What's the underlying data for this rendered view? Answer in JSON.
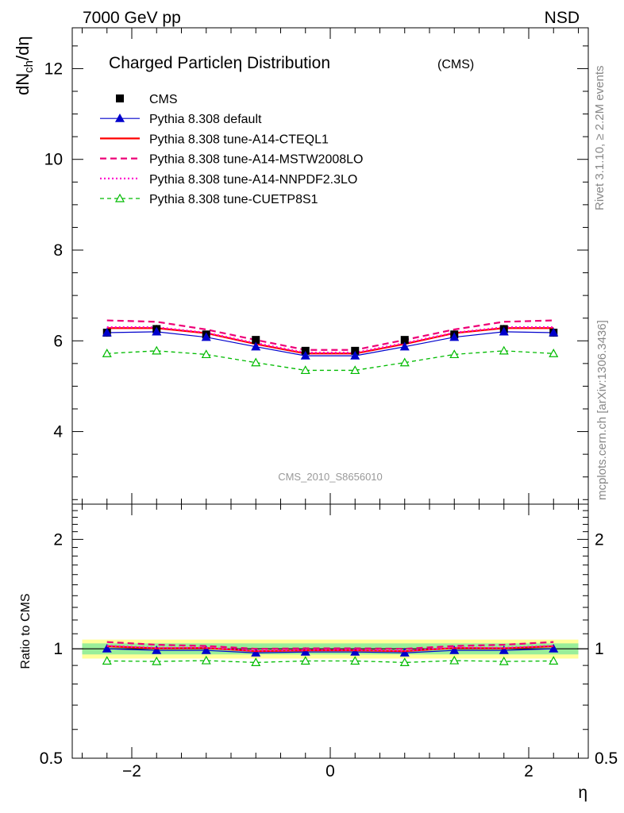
{
  "header": {
    "energy_label": "7000 GeV pp",
    "process_label": "NSD"
  },
  "side_labels": {
    "rivet": "Rivet 3.1.10, ≥ 2.2M events",
    "mcplots": "mcplots.cern.ch [arXiv:1306.3436]"
  },
  "chart_data": [
    {
      "type": "line",
      "title": "Charged Particleη Distribution",
      "title_suffix": "(CMS)",
      "ylabel": "dN",
      "ylabel_sub": "ch",
      "ylabel_tail": "/dη",
      "watermark": "CMS_2010_S8656010",
      "xlim": [
        -2.6,
        2.6
      ],
      "ylim": [
        2.4,
        12.9
      ],
      "yticks": [
        4,
        6,
        8,
        10,
        12
      ],
      "x": [
        -2.25,
        -1.75,
        -1.25,
        -0.75,
        -0.25,
        0.25,
        0.75,
        1.25,
        1.75,
        2.25
      ],
      "series": [
        {
          "name": "CMS",
          "style": "data",
          "color": "#000000",
          "values": [
            6.18,
            6.26,
            6.14,
            6.02,
            5.78,
            5.78,
            6.02,
            6.14,
            6.26,
            6.18
          ],
          "errors": [
            0.09,
            0.09,
            0.08,
            0.08,
            0.07,
            0.07,
            0.08,
            0.08,
            0.09,
            0.09
          ]
        },
        {
          "name": "Pythia 8.308 default",
          "style": "solid-triangle",
          "color": "#0000cc",
          "values": [
            6.18,
            6.2,
            6.08,
            5.87,
            5.67,
            5.67,
            5.87,
            6.08,
            6.2,
            6.18
          ]
        },
        {
          "name": "Pythia 8.308 tune-A14-CTEQL1",
          "style": "solid",
          "color": "#ff0000",
          "values": [
            6.28,
            6.28,
            6.17,
            5.93,
            5.72,
            5.72,
            5.93,
            6.17,
            6.28,
            6.28
          ]
        },
        {
          "name": "Pythia 8.308 tune-A14-MSTW2008LO",
          "style": "dashed",
          "color": "#ee0077",
          "values": [
            6.45,
            6.42,
            6.25,
            6.02,
            5.8,
            5.8,
            6.02,
            6.25,
            6.42,
            6.45
          ]
        },
        {
          "name": "Pythia 8.308 tune-A14-NNPDF2.3LO",
          "style": "dotted",
          "color": "#ff00cc",
          "values": [
            6.3,
            6.3,
            6.18,
            5.95,
            5.74,
            5.74,
            5.95,
            6.18,
            6.3,
            6.3
          ]
        },
        {
          "name": "Pythia 8.308 tune-CUETP8S1",
          "style": "dashed-open-triangle",
          "color": "#00bb00",
          "values": [
            5.72,
            5.78,
            5.7,
            5.52,
            5.35,
            5.35,
            5.52,
            5.7,
            5.78,
            5.72
          ]
        }
      ]
    },
    {
      "type": "line",
      "title": "",
      "xlabel": "η",
      "ylabel": "Ratio to CMS",
      "xlim": [
        -2.6,
        2.6
      ],
      "ylim": [
        0.5,
        2.5
      ],
      "scale_y": "log",
      "yticks": [
        0.5,
        1,
        2
      ],
      "yticklabels": [
        "0.5",
        "1",
        "2"
      ],
      "xticks": [
        -2,
        0,
        2
      ],
      "xticklabels": [
        "−2",
        "0",
        "2"
      ],
      "x": [
        -2.25,
        -1.75,
        -1.25,
        -0.75,
        -0.25,
        0.25,
        0.75,
        1.25,
        1.75,
        2.25
      ],
      "band_green": 0.035,
      "band_yellow": 0.06,
      "series": [
        {
          "name": "Pythia 8.308 default",
          "color": "#0000cc",
          "values": [
            1.0,
            0.99,
            0.99,
            0.975,
            0.98,
            0.98,
            0.975,
            0.99,
            0.99,
            1.0
          ]
        },
        {
          "name": "Pythia 8.308 tune-A14-CTEQL1",
          "color": "#ff0000",
          "values": [
            1.016,
            1.003,
            1.005,
            0.985,
            0.99,
            0.99,
            0.985,
            1.005,
            1.003,
            1.016
          ]
        },
        {
          "name": "Pythia 8.308 tune-A14-MSTW2008LO",
          "color": "#ee0077",
          "values": [
            1.044,
            1.026,
            1.018,
            1.0,
            1.003,
            1.003,
            1.0,
            1.018,
            1.026,
            1.044
          ]
        },
        {
          "name": "Pythia 8.308 tune-A14-NNPDF2.3LO",
          "color": "#ff00cc",
          "values": [
            1.019,
            1.006,
            1.007,
            0.988,
            0.993,
            0.993,
            0.988,
            1.007,
            1.006,
            1.019
          ]
        },
        {
          "name": "Pythia 8.308 tune-CUETP8S1",
          "color": "#00bb00",
          "values": [
            0.926,
            0.923,
            0.928,
            0.917,
            0.926,
            0.926,
            0.917,
            0.928,
            0.923,
            0.926
          ]
        }
      ]
    }
  ]
}
